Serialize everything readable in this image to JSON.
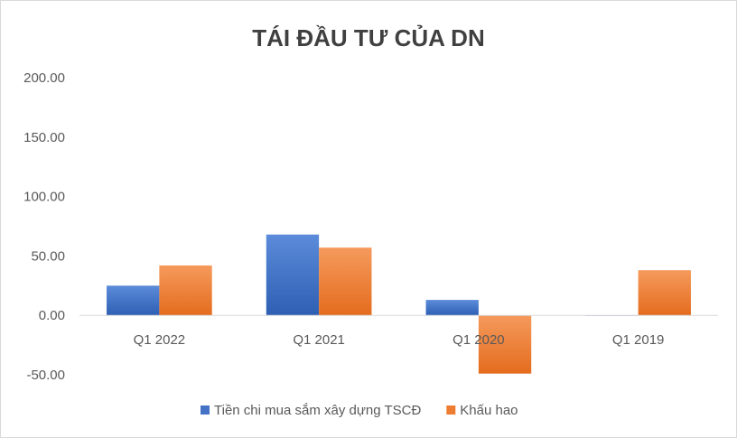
{
  "chart_data": {
    "type": "bar",
    "title": "TÁI ĐẦU TƯ CỦA DN",
    "xlabel": "",
    "ylabel": "",
    "categories": [
      "Q1 2022",
      "Q1 2021",
      "Q1 2020",
      "Q1 2019"
    ],
    "series": [
      {
        "name": "Tiền chi mua sắm xây dựng TSCĐ",
        "color": "#4472c4",
        "values": [
          25,
          68,
          13,
          0
        ]
      },
      {
        "name": "Khấu hao",
        "color": "#ed7d31",
        "values": [
          42,
          57,
          -49,
          38
        ]
      }
    ],
    "ylim": [
      -50,
      200
    ],
    "yticks": [
      "-50.00",
      "0.00",
      "50.00",
      "100.00",
      "150.00",
      "200.00"
    ],
    "grid": false,
    "legend_position": "bottom"
  }
}
